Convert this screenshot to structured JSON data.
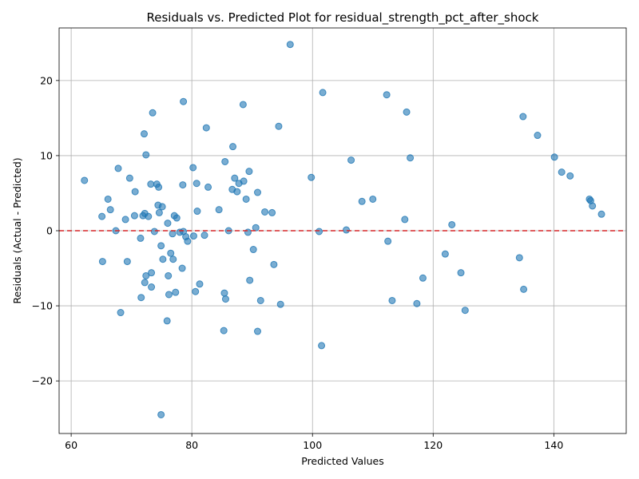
{
  "chart_data": {
    "type": "scatter",
    "title": "Residuals vs. Predicted Plot for residual_strength_pct_after_shock",
    "xlabel": "Predicted Values",
    "ylabel": "Residuals (Actual - Predicted)",
    "xlim": [
      58,
      152
    ],
    "ylim": [
      -27,
      27
    ],
    "xticks": [
      60,
      80,
      100,
      120,
      140
    ],
    "yticks": [
      -20,
      -10,
      0,
      10,
      20
    ],
    "xtick_labels": [
      "60",
      "80",
      "100",
      "120",
      "140"
    ],
    "ytick_labels": [
      "−20",
      "−10",
      "0",
      "10",
      "20"
    ],
    "grid": true,
    "reference_line": {
      "y": 0,
      "color": "#d62728",
      "style": "dashed"
    },
    "marker_color": "#1f77b4",
    "points": [
      [
        62.2,
        6.7
      ],
      [
        65.1,
        1.9
      ],
      [
        65.2,
        -4.1
      ],
      [
        66.1,
        4.2
      ],
      [
        66.5,
        2.8
      ],
      [
        67.4,
        0.0
      ],
      [
        67.8,
        8.3
      ],
      [
        68.2,
        -10.9
      ],
      [
        69.0,
        1.5
      ],
      [
        69.3,
        -4.1
      ],
      [
        69.7,
        7.0
      ],
      [
        70.5,
        2.0
      ],
      [
        70.6,
        5.2
      ],
      [
        71.5,
        -1.0
      ],
      [
        71.6,
        -8.9
      ],
      [
        71.9,
        2.0
      ],
      [
        72.1,
        12.9
      ],
      [
        72.2,
        2.3
      ],
      [
        72.2,
        -6.9
      ],
      [
        72.4,
        10.1
      ],
      [
        72.4,
        -6.0
      ],
      [
        72.8,
        1.9
      ],
      [
        73.2,
        6.2
      ],
      [
        73.3,
        -5.6
      ],
      [
        73.3,
        -7.5
      ],
      [
        73.5,
        15.7
      ],
      [
        73.8,
        -0.1
      ],
      [
        74.2,
        6.2
      ],
      [
        74.4,
        3.4
      ],
      [
        74.5,
        5.8
      ],
      [
        74.6,
        2.4
      ],
      [
        74.9,
        -24.5
      ],
      [
        74.9,
        -2.0
      ],
      [
        75.1,
        3.2
      ],
      [
        75.2,
        -3.8
      ],
      [
        75.9,
        -12.0
      ],
      [
        76.0,
        1.0
      ],
      [
        76.1,
        -6.0
      ],
      [
        76.2,
        -8.5
      ],
      [
        76.5,
        -3.0
      ],
      [
        76.8,
        -0.4
      ],
      [
        76.9,
        -3.8
      ],
      [
        77.1,
        2.0
      ],
      [
        77.3,
        -8.2
      ],
      [
        77.5,
        1.7
      ],
      [
        78.0,
        -0.2
      ],
      [
        78.4,
        -5.0
      ],
      [
        78.5,
        6.1
      ],
      [
        78.6,
        17.2
      ],
      [
        78.6,
        -0.1
      ],
      [
        79.0,
        -0.8
      ],
      [
        79.3,
        -1.4
      ],
      [
        80.2,
        8.4
      ],
      [
        80.3,
        -0.7
      ],
      [
        80.6,
        -8.1
      ],
      [
        80.8,
        6.3
      ],
      [
        80.9,
        2.6
      ],
      [
        81.3,
        -7.1
      ],
      [
        82.1,
        -0.6
      ],
      [
        82.4,
        13.7
      ],
      [
        82.7,
        5.8
      ],
      [
        84.5,
        2.8
      ],
      [
        85.3,
        -13.3
      ],
      [
        85.4,
        -8.3
      ],
      [
        85.5,
        9.2
      ],
      [
        85.6,
        -9.1
      ],
      [
        86.1,
        0.0
      ],
      [
        86.7,
        5.5
      ],
      [
        86.8,
        11.2
      ],
      [
        87.1,
        7.0
      ],
      [
        87.5,
        5.2
      ],
      [
        87.8,
        6.3
      ],
      [
        88.5,
        16.8
      ],
      [
        88.6,
        6.6
      ],
      [
        89.0,
        4.2
      ],
      [
        89.3,
        -0.2
      ],
      [
        89.5,
        7.9
      ],
      [
        89.6,
        -6.6
      ],
      [
        90.2,
        -2.5
      ],
      [
        90.6,
        0.4
      ],
      [
        90.9,
        -13.4
      ],
      [
        90.9,
        5.1
      ],
      [
        91.4,
        -9.3
      ],
      [
        92.1,
        2.5
      ],
      [
        93.3,
        2.4
      ],
      [
        93.6,
        -4.5
      ],
      [
        94.4,
        13.9
      ],
      [
        94.7,
        -9.8
      ],
      [
        96.3,
        24.8
      ],
      [
        99.8,
        7.1
      ],
      [
        101.1,
        -0.1
      ],
      [
        101.5,
        -15.3
      ],
      [
        101.7,
        18.4
      ],
      [
        105.6,
        0.1
      ],
      [
        106.4,
        9.4
      ],
      [
        108.2,
        3.9
      ],
      [
        110.0,
        4.2
      ],
      [
        112.3,
        18.1
      ],
      [
        112.5,
        -1.4
      ],
      [
        113.2,
        -9.3
      ],
      [
        115.3,
        1.5
      ],
      [
        115.6,
        15.8
      ],
      [
        116.2,
        9.7
      ],
      [
        117.3,
        -9.7
      ],
      [
        118.3,
        -6.3
      ],
      [
        122.0,
        -3.1
      ],
      [
        123.1,
        0.8
      ],
      [
        124.6,
        -5.6
      ],
      [
        125.3,
        -10.6
      ],
      [
        134.3,
        -3.6
      ],
      [
        134.9,
        15.2
      ],
      [
        135.0,
        -7.8
      ],
      [
        137.3,
        12.7
      ],
      [
        140.1,
        9.8
      ],
      [
        141.3,
        7.8
      ],
      [
        142.7,
        7.3
      ],
      [
        145.9,
        4.2
      ],
      [
        146.1,
        4.0
      ],
      [
        146.4,
        3.3
      ],
      [
        147.9,
        2.2
      ]
    ]
  }
}
